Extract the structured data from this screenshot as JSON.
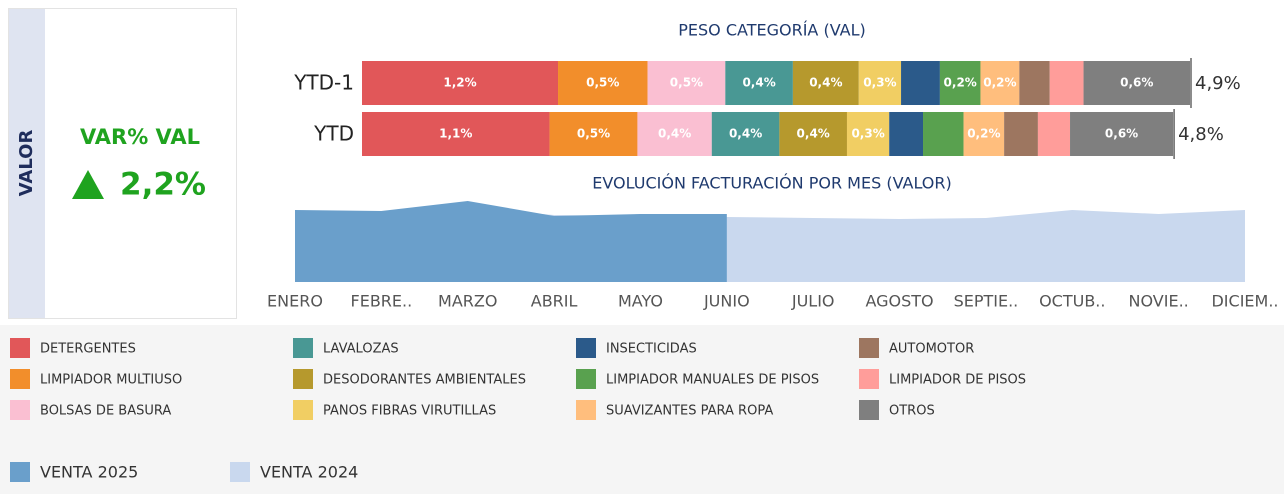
{
  "kpi": {
    "side_label": "VALOR",
    "title": "VAR% VAL",
    "value": 2.2,
    "value_label": "2,2%"
  },
  "chart_data": [
    {
      "type": "stacked-bar",
      "title": "PESO CATEGORÍA (VAL)",
      "categories": [
        "YTD-1",
        "YTD"
      ],
      "totals": [
        4.9,
        4.8
      ],
      "total_labels": [
        "4,9%",
        "4,8%"
      ],
      "series": [
        {
          "name": "DETERGENTES",
          "color": "#e15759",
          "values": [
            1.16,
            1.11
          ],
          "value_labels": [
            "1,2%",
            "1,1%"
          ]
        },
        {
          "name": "LIMPIADOR MULTIUSO",
          "color": "#f28e2b",
          "values": [
            0.53,
            0.52
          ],
          "value_labels": [
            "0,5%",
            "0,5%"
          ]
        },
        {
          "name": "BOLSAS DE BASURA",
          "color": "#fabfd2",
          "values": [
            0.46,
            0.44
          ],
          "value_labels": [
            "0,5%",
            "0,4%"
          ]
        },
        {
          "name": "LAVALOZAS",
          "color": "#499894",
          "values": [
            0.4,
            0.4
          ],
          "value_labels": [
            "0,4%",
            "0,4%"
          ]
        },
        {
          "name": "DESODORANTES AMBIENTALES",
          "color": "#b6992d",
          "values": [
            0.39,
            0.4
          ],
          "value_labels": [
            "0,4%",
            "0,4%"
          ]
        },
        {
          "name": "PANOS FIBRAS VIRUTILLAS",
          "color": "#f1ce63",
          "values": [
            0.25,
            0.25
          ],
          "value_labels": [
            "0,3%",
            "0,3%"
          ]
        },
        {
          "name": "INSECTICIDAS",
          "color": "#2b5a8a",
          "values": [
            0.23,
            0.2
          ],
          "value_labels": [
            null,
            null
          ]
        },
        {
          "name": "LIMPIADOR MANUALES DE PISOS",
          "color": "#59a14f",
          "values": [
            0.24,
            0.24
          ],
          "value_labels": [
            "0,2%",
            null
          ]
        },
        {
          "name": "SUAVIZANTES PARA ROPA",
          "color": "#ffbe7d",
          "values": [
            0.23,
            0.24
          ],
          "value_labels": [
            "0,2%",
            "0,2%"
          ]
        },
        {
          "name": "AUTOMOTOR",
          "color": "#9d7660",
          "values": [
            0.18,
            0.2
          ],
          "value_labels": [
            null,
            null
          ]
        },
        {
          "name": "LIMPIADOR DE PISOS",
          "color": "#ff9d9a",
          "values": [
            0.2,
            0.19
          ],
          "value_labels": [
            null,
            null
          ]
        },
        {
          "name": "OTROS",
          "color": "#7f7f7f",
          "values": [
            0.63,
            0.61
          ],
          "value_labels": [
            "0,6%",
            "0,6%"
          ]
        }
      ]
    },
    {
      "type": "area",
      "title": "EVOLUCIÓN FACTURACIÓN POR MES (VALOR)",
      "categories": [
        "ENERO",
        "FEBRE..",
        "MARZO",
        "ABRIL",
        "MAYO",
        "JUNIO",
        "JULIO",
        "AGOSTO",
        "SEPTIE..",
        "OCTUB..",
        "NOVIE..",
        "DICIEM.."
      ],
      "series": [
        {
          "name": "VENTA 2025",
          "color": "#6a9fcb",
          "values": [
            72,
            71,
            81,
            66,
            68,
            68,
            null,
            null,
            null,
            null,
            null,
            null
          ]
        },
        {
          "name": "VENTA 2024",
          "color": "#c9d8ee",
          "values": [
            70,
            69,
            74,
            67,
            66,
            65,
            64,
            63,
            64,
            72,
            68,
            72
          ]
        }
      ]
    }
  ]
}
